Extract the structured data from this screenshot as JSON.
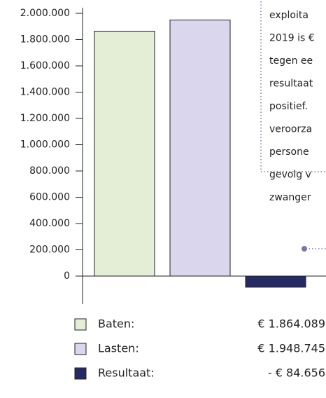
{
  "chart_data": {
    "type": "bar",
    "categories": [
      "Baten:",
      "Lasten:",
      "Resultaat:"
    ],
    "values": [
      1864089,
      1948745,
      -84656
    ],
    "value_labels": [
      "€ 1.864.089",
      "€ 1.948.745",
      "- € 84.656"
    ],
    "colors": [
      "#e4edd6",
      "#d9d6ee",
      "#262a64"
    ],
    "ylim": [
      0,
      2000000
    ],
    "yticks": [
      0,
      {
        "value": 200000,
        "label": "200.000"
      },
      {
        "value": 400000,
        "label": "400.000"
      },
      {
        "value": 600000,
        "label": "600.000"
      },
      {
        "value": 800000,
        "label": "800.000"
      },
      {
        "value": 1000000,
        "label": "1.000.000"
      },
      {
        "value": 1200000,
        "label": "1.200.000"
      },
      {
        "value": 1400000,
        "label": "1.400.000"
      },
      {
        "value": 1600000,
        "label": "1.600.000"
      },
      {
        "value": 1800000,
        "label": "1.800.000"
      },
      {
        "value": 2000000,
        "label": "2.000.000"
      }
    ],
    "annotation_lines": [
      "exploita",
      "2019 is €",
      "tegen ee",
      "resultaat",
      "positief.",
      "veroorza",
      "persone",
      "gevolg v",
      "zwanger"
    ]
  }
}
